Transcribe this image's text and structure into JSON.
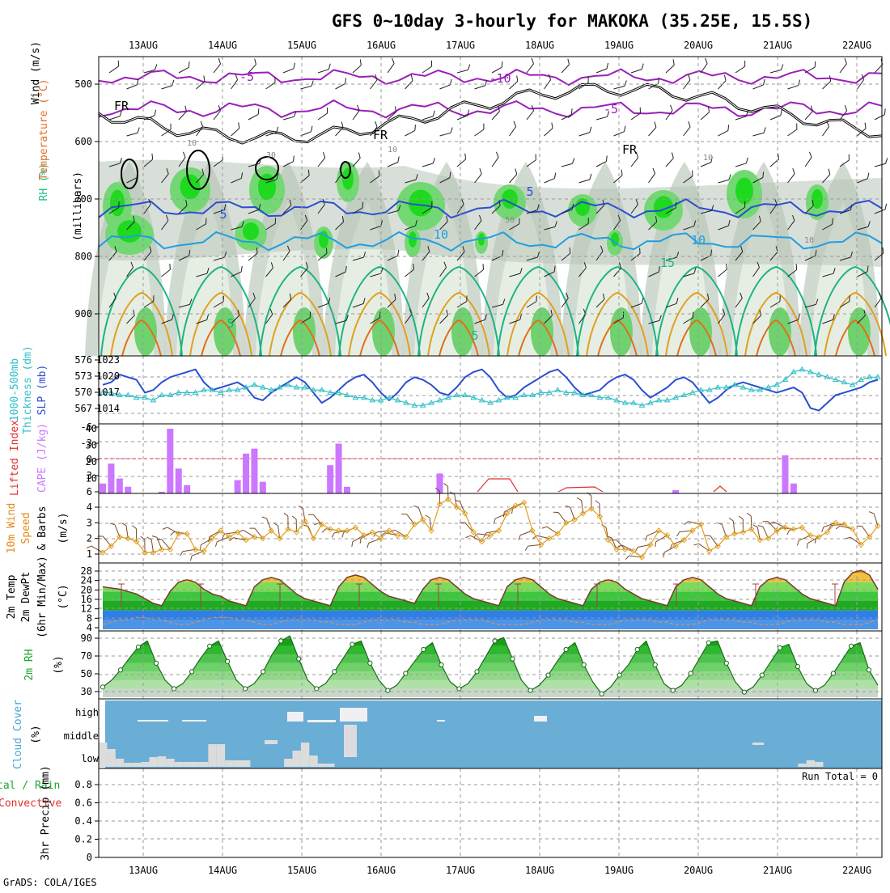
{
  "title": "GFS 0~10day 3-hourly for MAKOKA (35.25E, 15.5S)",
  "credit": "GrADS: COLA/IGES",
  "run_total": "Run Total = 0",
  "dates": [
    "13AUG",
    "14AUG",
    "15AUG",
    "16AUG",
    "17AUG",
    "18AUG",
    "19AUG",
    "20AUG",
    "21AUG",
    "22AUG"
  ],
  "colors": {
    "purple": "#9a1fb8",
    "blue": "#2a4fd0",
    "skyblue": "#1f9ee0",
    "teal": "#1db384",
    "orange": "#e0a020",
    "darkorange": "#e0701a",
    "green": "#35c23a",
    "cloudbg": "#6aaed6",
    "cloud": "#dcdcdc",
    "red": "#e03030",
    "cyan": "#30c0c8",
    "violet": "#cc77ff"
  },
  "panels": {
    "upper": {
      "label_wind": "Wind (m/s)",
      "label_temp": "Temperature (°C)",
      "label_rh": "RH (%)",
      "axis_title": "(millibars)",
      "levels": [
        "500",
        "600",
        "700",
        "800",
        "900"
      ],
      "contour_labels": [
        "-5",
        "-10",
        "-5",
        "FR",
        "FR",
        "FR",
        "5",
        "5",
        "10",
        "10",
        "15",
        "5",
        "50",
        "10",
        "30",
        "10",
        "10",
        "10",
        "5"
      ]
    },
    "slp": {
      "label_a": "1000-500mb",
      "label_b": "Thickness (dm)",
      "label_c": "SLP (mb)",
      "left_ticks": [
        "576",
        "573",
        "570",
        "567"
      ],
      "right_ticks": [
        "1023",
        "1020",
        "1017",
        "1014"
      ]
    },
    "cape": {
      "label_a": "Lifted Index",
      "label_b": "CAPE (J/kg)",
      "left_ticks": [
        "-6",
        "-3",
        "0",
        "3",
        "6"
      ],
      "right_ticks": [
        "40",
        "30",
        "20",
        "10"
      ]
    },
    "wind10": {
      "label_a": "10m Wind",
      "label_b": "Speed",
      "label_c": "& Barbs",
      "unit": "(m/s)",
      "ticks": [
        "4",
        "3",
        "2",
        "1"
      ]
    },
    "temp2m": {
      "label_a": "2m Temp",
      "label_b": "2m DewPt",
      "label_c": "(6hr Min/Max)",
      "unit": "(°C)",
      "ticks": [
        "28",
        "24",
        "20",
        "16",
        "12",
        "8",
        "4"
      ]
    },
    "rh2m": {
      "label_a": "2m RH",
      "unit": "(%)",
      "ticks": [
        "90",
        "70",
        "50",
        "30"
      ]
    },
    "cloud": {
      "label_a": "Cloud Cover",
      "unit": "(%)",
      "levels": [
        "high",
        "middle",
        "low"
      ]
    },
    "precip": {
      "label_a": "tal / Rain",
      "label_b": "Convective",
      "label_c": "3hr Precip (mm)",
      "ticks": [
        "0.8",
        "0.6",
        "0.4",
        "0.2",
        "0"
      ]
    }
  },
  "chart_data": [
    {
      "type": "line",
      "name": "slp_thickness",
      "series": [
        {
          "name": "SLP",
          "values": [
            1018.5,
            1019,
            1020.5,
            1020,
            1019.5,
            1017,
            1017.5,
            1019,
            1020,
            1020.5,
            1021,
            1021.5,
            1019,
            1017.5,
            1018,
            1018.5,
            1019,
            1018,
            1016,
            1015.5,
            1017,
            1018,
            1019,
            1020,
            1019,
            1017,
            1015,
            1016,
            1017.5,
            1019,
            1020,
            1020.5,
            1019,
            1017,
            1015.5,
            1017,
            1019,
            1020,
            1019.5,
            1018.5,
            1017,
            1016.5,
            1018,
            1020,
            1021,
            1021.5,
            1020,
            1017.5,
            1016,
            1016.5,
            1018,
            1019,
            1020,
            1021,
            1021.5,
            1020,
            1018,
            1016.5,
            1017,
            1017.5,
            1019,
            1020,
            1020.5,
            1019.5,
            1017.5,
            1016,
            1017,
            1018,
            1019.5,
            1020,
            1019,
            1017,
            1015,
            1016,
            1017.5,
            1018.5,
            1019,
            1018.5,
            1018,
            1017.5,
            1017,
            1017.5,
            1018,
            1017,
            1014,
            1013.5,
            1015,
            1016.5,
            1017,
            1017.5,
            1018,
            1019,
            1019.5
          ]
        },
        {
          "name": "Thickness",
          "values": [
            569.5,
            569.5,
            569,
            569,
            568.5,
            568.5,
            568,
            569,
            569,
            569.5,
            569.5,
            569.5,
            570,
            570,
            569.5,
            570,
            570,
            570.5,
            571,
            570.5,
            570,
            570.5,
            571,
            570.5,
            570.5,
            570,
            570,
            569.5,
            569.5,
            569,
            568.5,
            568.5,
            568,
            568,
            568.5,
            568,
            567.5,
            567,
            567,
            567.5,
            568,
            568.5,
            569,
            569,
            568.5,
            568,
            567.5,
            568,
            568.5,
            568.5,
            569,
            569,
            569.5,
            569.5,
            570,
            569.5,
            569.5,
            569,
            569,
            568.5,
            568.5,
            568,
            567.5,
            567.5,
            567,
            567.5,
            568,
            568,
            568.5,
            569,
            569.5,
            570,
            570,
            570.5,
            570.5,
            571,
            570.5,
            570,
            570,
            570.5,
            571,
            572,
            573.5,
            574,
            573.5,
            573,
            572.5,
            572,
            571.5,
            571,
            572,
            572.5,
            572.5
          ]
        }
      ]
    },
    {
      "type": "bar",
      "name": "cape",
      "values": [
        6,
        18,
        9,
        4,
        0,
        0,
        0,
        1,
        39,
        15,
        5,
        0,
        0,
        0,
        0,
        0,
        8,
        24,
        27,
        7,
        0,
        0,
        0,
        0,
        0,
        0,
        0,
        17,
        30,
        4,
        0,
        0,
        0,
        0,
        0,
        0,
        0,
        0,
        0,
        0,
        12,
        0,
        0,
        0,
        0,
        0,
        0,
        0,
        0,
        0,
        0,
        0,
        0,
        0,
        0,
        0,
        0,
        0,
        0,
        0,
        0,
        0,
        0,
        0,
        0,
        0,
        0,
        0,
        2,
        0,
        0,
        0,
        0,
        0,
        0,
        0,
        0,
        0,
        0,
        0,
        0,
        23,
        6,
        0,
        0,
        0,
        0,
        0,
        0,
        0,
        0,
        0,
        0
      ]
    },
    {
      "type": "line",
      "name": "wind10m_speed",
      "values": [
        1.1,
        1.5,
        2.1,
        2.0,
        1.8,
        1.1,
        1.1,
        1.3,
        1.3,
        2.3,
        2.3,
        1.3,
        1.2,
        2.0,
        2.5,
        2.1,
        2.4,
        1.9,
        2.1,
        2.0,
        2.5,
        2.0,
        2.6,
        2.4,
        3.1,
        2.0,
        2.9,
        2.6,
        2.5,
        2.5,
        2.7,
        2.2,
        2.4,
        2.0,
        2.5,
        2.2,
        2.1,
        2.9,
        3.2,
        2.5,
        4.2,
        4.5,
        4.0,
        3.6,
        2.4,
        1.8,
        2.2,
        2.5,
        3.6,
        4.1,
        4.3,
        2.5,
        1.6,
        2.0,
        2.3,
        3.0,
        3.2,
        3.6,
        3.9,
        3.4,
        1.9,
        1.3,
        1.3,
        1.2,
        0.8,
        1.6,
        2.5,
        2.2,
        1.5,
        1.9,
        2.5,
        2.9,
        1.2,
        1.5,
        2.1,
        2.3,
        2.4,
        2.6,
        1.9,
        2.0,
        2.5,
        2.7,
        2.6,
        2.7,
        2.2,
        2.1,
        2.4,
        3.0,
        2.9,
        2.6,
        1.6,
        2.1,
        2.8
      ]
    },
    {
      "type": "area",
      "name": "temp2m",
      "series": [
        {
          "name": "Temp",
          "values": [
            22,
            21.5,
            21,
            20,
            19,
            17,
            15,
            14,
            20,
            24,
            25,
            24,
            21,
            19,
            18,
            16,
            15,
            14,
            22,
            25,
            26,
            25,
            22,
            19,
            17,
            16,
            15,
            14,
            22,
            26,
            27,
            26,
            23,
            20,
            18,
            17,
            16,
            15,
            21,
            25,
            26,
            25,
            22,
            19,
            17,
            16,
            15,
            14,
            22,
            25,
            26,
            25,
            22,
            19,
            17,
            16,
            15,
            14,
            21,
            24,
            25,
            24,
            21,
            19,
            17,
            16,
            15,
            14,
            22,
            25,
            26,
            25,
            22,
            19,
            17,
            16,
            15,
            14,
            22,
            25,
            26,
            25,
            22,
            19,
            17,
            16,
            15,
            14,
            24,
            28,
            29,
            27,
            21
          ]
        },
        {
          "name": "DewPt",
          "values": [
            6,
            7,
            8,
            8,
            9,
            9,
            8,
            8,
            7,
            6,
            6,
            7,
            8,
            9,
            9,
            9,
            8,
            8,
            7,
            6,
            6,
            7,
            8,
            8,
            8,
            8,
            7,
            7,
            6,
            6,
            6,
            7,
            8,
            8,
            8,
            8,
            7,
            7,
            6,
            6,
            6,
            7,
            8,
            8,
            8,
            8,
            7,
            6,
            6,
            6,
            6,
            7,
            8,
            8,
            8,
            8,
            7,
            7,
            6,
            6,
            6,
            7,
            8,
            8,
            8,
            8,
            7,
            7,
            6,
            6,
            6,
            7,
            8,
            8,
            8,
            8,
            7,
            7,
            6,
            6,
            6,
            7,
            8,
            8,
            8,
            8,
            7,
            7,
            6,
            6,
            6,
            7,
            8
          ]
        }
      ]
    },
    {
      "type": "area",
      "name": "rh2m",
      "values": [
        32,
        40,
        52,
        66,
        79,
        86,
        60,
        40,
        30,
        36,
        50,
        66,
        80,
        86,
        62,
        40,
        30,
        36,
        50,
        70,
        86,
        92,
        65,
        40,
        30,
        36,
        50,
        66,
        82,
        86,
        60,
        40,
        28,
        34,
        48,
        62,
        76,
        84,
        58,
        38,
        30,
        36,
        50,
        68,
        86,
        90,
        65,
        40,
        28,
        34,
        46,
        62,
        76,
        84,
        58,
        38,
        24,
        32,
        46,
        58,
        76,
        86,
        58,
        36,
        28,
        34,
        48,
        66,
        84,
        86,
        60,
        38,
        26,
        32,
        46,
        62,
        78,
        82,
        56,
        36,
        28,
        34,
        48,
        64,
        80,
        84,
        52,
        34
      ]
    },
    {
      "type": "bar",
      "name": "cloud_low",
      "values": [
        30,
        22,
        10,
        5,
        5,
        6,
        12,
        13,
        10,
        6,
        6,
        6,
        6,
        28,
        28,
        8,
        8,
        8,
        0,
        0,
        0,
        0,
        10,
        20,
        30,
        14,
        4,
        4,
        0,
        0,
        0,
        0,
        0,
        0,
        0,
        0,
        0,
        0,
        0,
        0,
        0,
        0,
        0,
        0,
        0,
        0,
        0,
        0,
        0,
        0,
        0,
        0,
        0,
        0,
        0,
        0,
        0,
        0,
        0,
        0,
        0,
        0,
        0,
        0,
        0,
        0,
        0,
        0,
        0,
        0,
        0,
        0,
        0,
        0,
        0,
        0,
        0,
        0,
        0,
        0,
        0,
        0,
        0,
        4,
        8,
        6,
        0,
        0,
        0,
        0,
        0,
        0,
        0
      ]
    }
  ]
}
